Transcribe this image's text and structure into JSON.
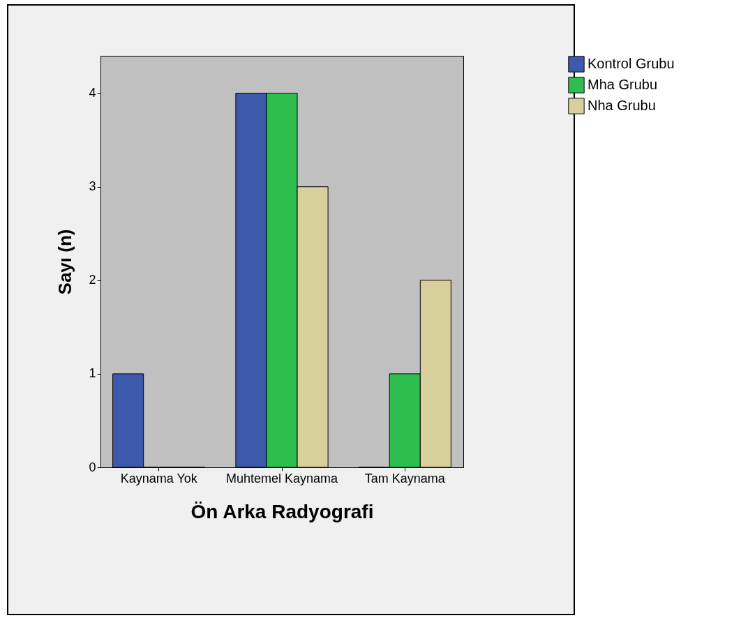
{
  "chart_data": {
    "type": "bar",
    "xlabel": "Ön  Arka Radyografi",
    "ylabel": "Sayı (n)",
    "categories": [
      "Kaynama Yok",
      "Muhtemel Kaynama",
      "Tam Kaynama"
    ],
    "series": [
      {
        "name": "Kontrol Grubu",
        "color": "#3d59ab",
        "values": [
          1,
          4,
          0
        ]
      },
      {
        "name": "Mha Grubu",
        "color": "#2ebd4f",
        "values": [
          0,
          4,
          1
        ]
      },
      {
        "name": "Nha Grubu",
        "color": "#d8d09c",
        "values": [
          0,
          3,
          2
        ]
      }
    ],
    "ylim": [
      0,
      4.4
    ],
    "yticks": [
      0,
      1,
      2,
      3,
      4
    ],
    "grid": false,
    "legend": "top right"
  }
}
